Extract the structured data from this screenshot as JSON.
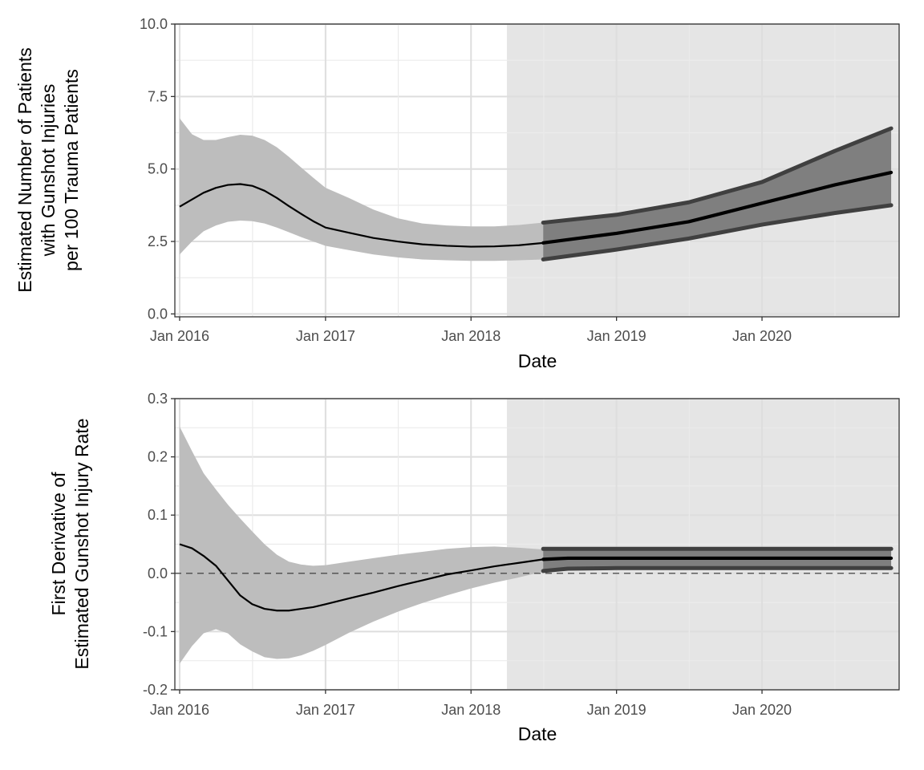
{
  "chart_data": [
    {
      "type": "line",
      "title": "",
      "xlabel": "Date",
      "ylabel_lines": [
        "Estimated Number of Patients",
        "with Gunshot Injuries",
        "per 100 Trauma Patients"
      ],
      "xlim": [
        "2015-12-20",
        "2020-12-10"
      ],
      "ylim": [
        -0.1,
        10.0
      ],
      "x_ticks": [
        {
          "date": "2016-01-01",
          "label": "Jan 2016"
        },
        {
          "date": "2017-01-01",
          "label": "Jan 2017"
        },
        {
          "date": "2018-01-01",
          "label": "Jan 2018"
        },
        {
          "date": "2019-01-01",
          "label": "Jan 2019"
        },
        {
          "date": "2020-01-01",
          "label": "Jan 2020"
        }
      ],
      "y_ticks": [
        {
          "value": 0.0,
          "label": "0.0"
        },
        {
          "value": 2.5,
          "label": "2.5"
        },
        {
          "value": 5.0,
          "label": "5.0"
        },
        {
          "value": 7.5,
          "label": "7.5"
        },
        {
          "value": 10.0,
          "label": "10.0"
        }
      ],
      "grid": true,
      "shaded_region": {
        "start": "2018-04-01",
        "end": "2020-12-10",
        "color": "#e5e5e5"
      },
      "observed": [
        {
          "x": "2016-01-01",
          "y": 3.7,
          "lo": 2.05,
          "hi": 6.75
        },
        {
          "x": "2016-02-01",
          "y": 3.95,
          "lo": 2.5,
          "hi": 6.2
        },
        {
          "x": "2016-03-01",
          "y": 4.18,
          "lo": 2.85,
          "hi": 6.0
        },
        {
          "x": "2016-04-01",
          "y": 4.35,
          "lo": 3.05,
          "hi": 6.0
        },
        {
          "x": "2016-05-01",
          "y": 4.45,
          "lo": 3.18,
          "hi": 6.1
        },
        {
          "x": "2016-06-01",
          "y": 4.48,
          "lo": 3.22,
          "hi": 6.18
        },
        {
          "x": "2016-07-01",
          "y": 4.42,
          "lo": 3.2,
          "hi": 6.15
        },
        {
          "x": "2016-08-01",
          "y": 4.25,
          "lo": 3.12,
          "hi": 6.0
        },
        {
          "x": "2016-09-01",
          "y": 4.0,
          "lo": 2.98,
          "hi": 5.75
        },
        {
          "x": "2016-10-01",
          "y": 3.72,
          "lo": 2.82,
          "hi": 5.42
        },
        {
          "x": "2016-11-01",
          "y": 3.45,
          "lo": 2.65,
          "hi": 5.05
        },
        {
          "x": "2016-12-01",
          "y": 3.2,
          "lo": 2.5,
          "hi": 4.7
        },
        {
          "x": "2017-01-01",
          "y": 2.98,
          "lo": 2.35,
          "hi": 4.35
        },
        {
          "x": "2017-03-01",
          "y": 2.8,
          "lo": 2.2,
          "hi": 4.0
        },
        {
          "x": "2017-05-01",
          "y": 2.62,
          "lo": 2.05,
          "hi": 3.6
        },
        {
          "x": "2017-07-01",
          "y": 2.5,
          "lo": 1.95,
          "hi": 3.3
        },
        {
          "x": "2017-09-01",
          "y": 2.4,
          "lo": 1.88,
          "hi": 3.12
        },
        {
          "x": "2017-11-01",
          "y": 2.35,
          "lo": 1.85,
          "hi": 3.05
        },
        {
          "x": "2018-01-01",
          "y": 2.32,
          "lo": 1.83,
          "hi": 3.02
        },
        {
          "x": "2018-03-01",
          "y": 2.33,
          "lo": 1.83,
          "hi": 3.02
        },
        {
          "x": "2018-05-01",
          "y": 2.37,
          "lo": 1.85,
          "hi": 3.07
        },
        {
          "x": "2018-07-01",
          "y": 2.45,
          "lo": 1.88,
          "hi": 3.15
        }
      ],
      "forecast": [
        {
          "x": "2018-07-01",
          "y": 2.45,
          "lo": 1.88,
          "hi": 3.15
        },
        {
          "x": "2019-01-01",
          "y": 2.78,
          "lo": 2.22,
          "hi": 3.42
        },
        {
          "x": "2019-07-01",
          "y": 3.18,
          "lo": 2.6,
          "hi": 3.85
        },
        {
          "x": "2020-01-01",
          "y": 3.82,
          "lo": 3.08,
          "hi": 4.55
        },
        {
          "x": "2020-07-01",
          "y": 4.45,
          "lo": 3.48,
          "hi": 5.62
        },
        {
          "x": "2020-11-20",
          "y": 4.88,
          "lo": 3.75,
          "hi": 6.4
        }
      ]
    },
    {
      "type": "line",
      "title": "",
      "xlabel": "Date",
      "ylabel_lines": [
        "First Derivative of",
        "Estimated Gunshot Injury Rate"
      ],
      "xlim": [
        "2015-12-20",
        "2020-12-10"
      ],
      "ylim": [
        -0.2,
        0.3
      ],
      "x_ticks": [
        {
          "date": "2016-01-01",
          "label": "Jan 2016"
        },
        {
          "date": "2017-01-01",
          "label": "Jan 2017"
        },
        {
          "date": "2018-01-01",
          "label": "Jan 2018"
        },
        {
          "date": "2019-01-01",
          "label": "Jan 2019"
        },
        {
          "date": "2020-01-01",
          "label": "Jan 2020"
        }
      ],
      "y_ticks": [
        {
          "value": -0.2,
          "label": "-0.2"
        },
        {
          "value": -0.1,
          "label": "-0.1"
        },
        {
          "value": 0.0,
          "label": "0.0"
        },
        {
          "value": 0.1,
          "label": "0.1"
        },
        {
          "value": 0.2,
          "label": "0.2"
        },
        {
          "value": 0.3,
          "label": "0.3"
        }
      ],
      "grid": true,
      "reference_line": {
        "y": 0.0,
        "style": "dashed"
      },
      "shaded_region": {
        "start": "2018-04-01",
        "end": "2020-12-10",
        "color": "#e5e5e5"
      },
      "observed": [
        {
          "x": "2016-01-01",
          "y": 0.05,
          "lo": -0.155,
          "hi": 0.252
        },
        {
          "x": "2016-02-01",
          "y": 0.043,
          "lo": -0.125,
          "hi": 0.21
        },
        {
          "x": "2016-03-01",
          "y": 0.03,
          "lo": -0.103,
          "hi": 0.172
        },
        {
          "x": "2016-04-01",
          "y": 0.013,
          "lo": -0.096,
          "hi": 0.144
        },
        {
          "x": "2016-05-01",
          "y": -0.012,
          "lo": -0.103,
          "hi": 0.118
        },
        {
          "x": "2016-06-01",
          "y": -0.038,
          "lo": -0.122,
          "hi": 0.094
        },
        {
          "x": "2016-07-01",
          "y": -0.053,
          "lo": -0.134,
          "hi": 0.072
        },
        {
          "x": "2016-08-01",
          "y": -0.061,
          "lo": -0.144,
          "hi": 0.05
        },
        {
          "x": "2016-09-01",
          "y": -0.064,
          "lo": -0.147,
          "hi": 0.032
        },
        {
          "x": "2016-10-01",
          "y": -0.064,
          "lo": -0.146,
          "hi": 0.02
        },
        {
          "x": "2016-11-01",
          "y": -0.061,
          "lo": -0.141,
          "hi": 0.015
        },
        {
          "x": "2016-12-01",
          "y": -0.058,
          "lo": -0.133,
          "hi": 0.013
        },
        {
          "x": "2017-01-01",
          "y": -0.053,
          "lo": -0.123,
          "hi": 0.014
        },
        {
          "x": "2017-03-01",
          "y": -0.043,
          "lo": -0.102,
          "hi": 0.02
        },
        {
          "x": "2017-05-01",
          "y": -0.033,
          "lo": -0.083,
          "hi": 0.026
        },
        {
          "x": "2017-07-01",
          "y": -0.022,
          "lo": -0.066,
          "hi": 0.032
        },
        {
          "x": "2017-09-01",
          "y": -0.012,
          "lo": -0.051,
          "hi": 0.037
        },
        {
          "x": "2017-11-01",
          "y": -0.002,
          "lo": -0.038,
          "hi": 0.042
        },
        {
          "x": "2018-01-01",
          "y": 0.005,
          "lo": -0.026,
          "hi": 0.045
        },
        {
          "x": "2018-03-01",
          "y": 0.012,
          "lo": -0.016,
          "hi": 0.046
        },
        {
          "x": "2018-05-01",
          "y": 0.018,
          "lo": -0.007,
          "hi": 0.044
        },
        {
          "x": "2018-07-01",
          "y": 0.024,
          "lo": 0.003,
          "hi": 0.041
        }
      ],
      "forecast": [
        {
          "x": "2018-07-01",
          "y": 0.024,
          "lo": 0.004,
          "hi": 0.042
        },
        {
          "x": "2018-09-01",
          "y": 0.026,
          "lo": 0.008,
          "hi": 0.042
        },
        {
          "x": "2019-01-01",
          "y": 0.026,
          "lo": 0.009,
          "hi": 0.042
        },
        {
          "x": "2020-01-01",
          "y": 0.026,
          "lo": 0.009,
          "hi": 0.042
        },
        {
          "x": "2020-11-20",
          "y": 0.026,
          "lo": 0.009,
          "hi": 0.042
        }
      ]
    }
  ]
}
